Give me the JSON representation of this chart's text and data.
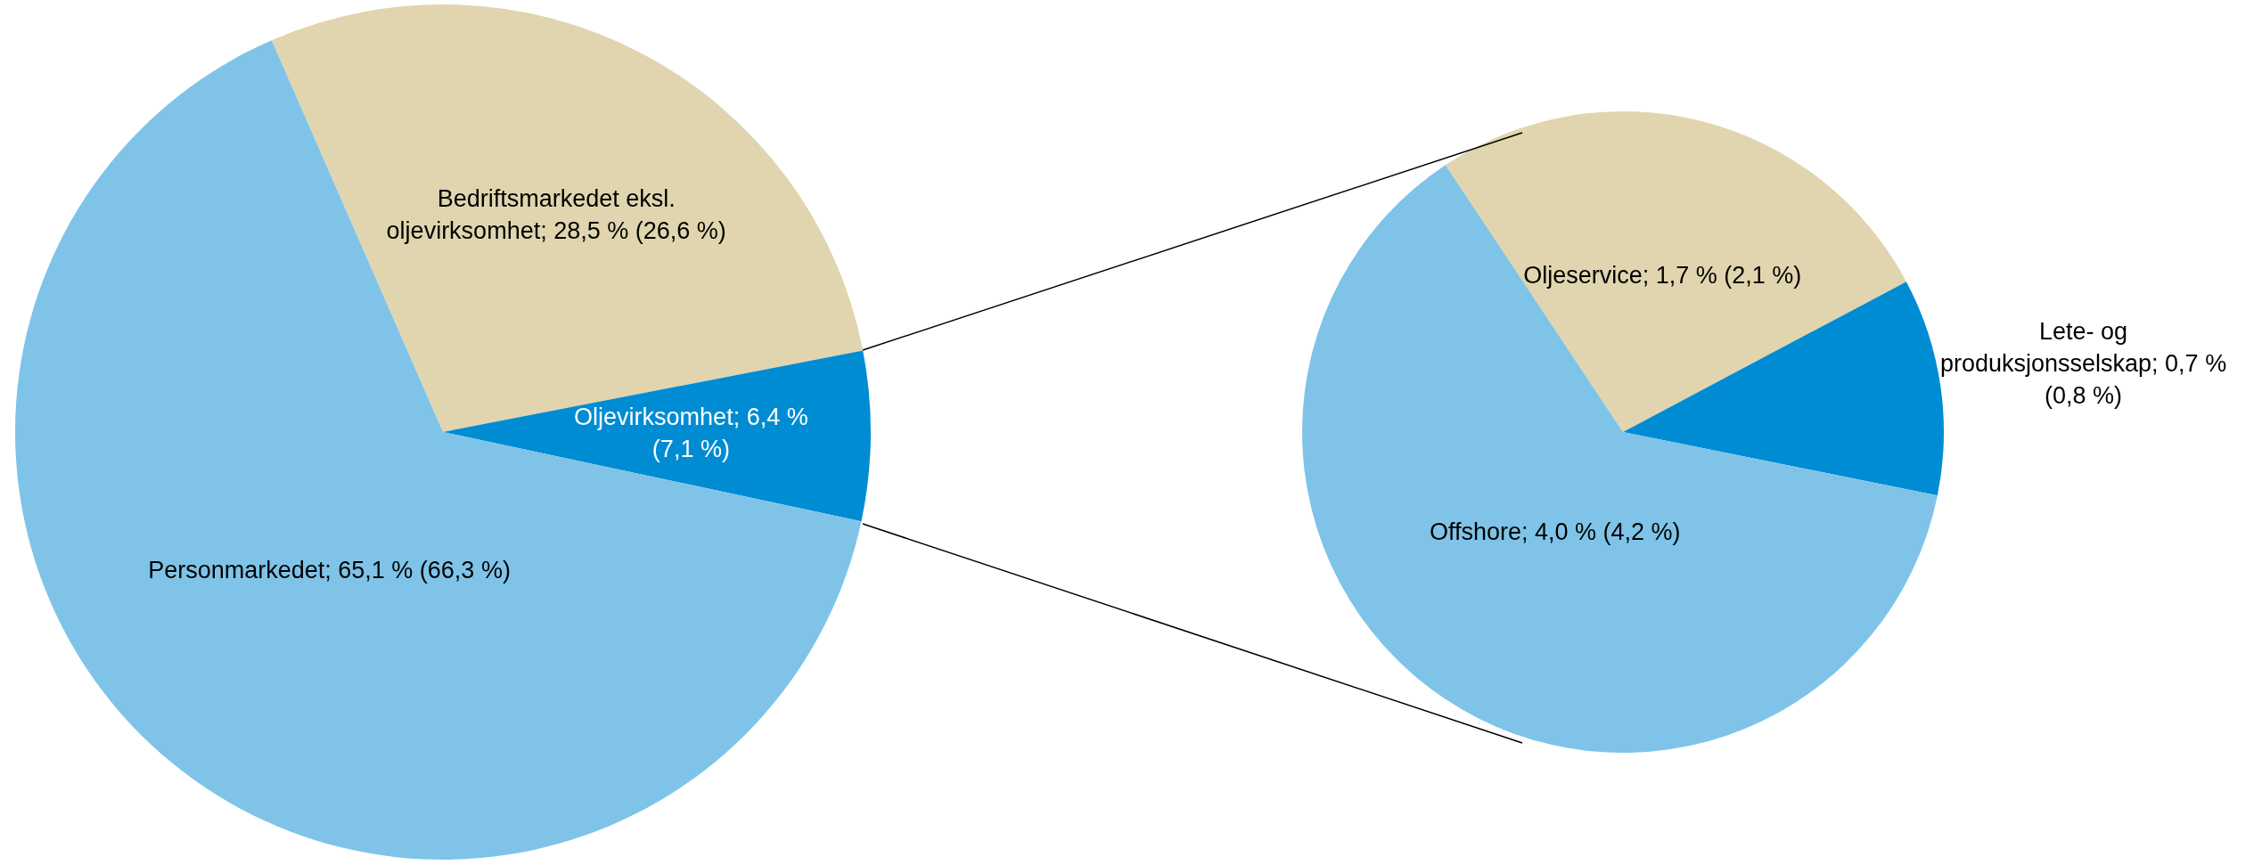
{
  "chart_data": [
    {
      "type": "pie",
      "categories": [
        "Bedriftsmarkedet eksl. oljevirksomhet",
        "Oljevirksomhet",
        "Personmarkedet"
      ],
      "values": [
        28.5,
        6.4,
        65.1
      ],
      "colors": [
        "#e0d5ae",
        "#008cd3",
        "#7fc4e8"
      ],
      "value_labels": [
        "28,5 % (26,6 %)",
        "6,4 % (7,1 %)",
        "65,1 % (66,3 %)"
      ]
    },
    {
      "type": "pie",
      "categories": [
        "Oljeservice",
        "Lete- og produksjonsselskap",
        "Offshore"
      ],
      "values": [
        1.7,
        0.7,
        4.0
      ],
      "colors": [
        "#e0d5ae",
        "#008cd3",
        "#7fc4e8"
      ],
      "value_labels": [
        "1,7 % (2,1 %)",
        "0,7 % (0,8 %)",
        "4,0 % (4,2 %)"
      ]
    }
  ]
}
